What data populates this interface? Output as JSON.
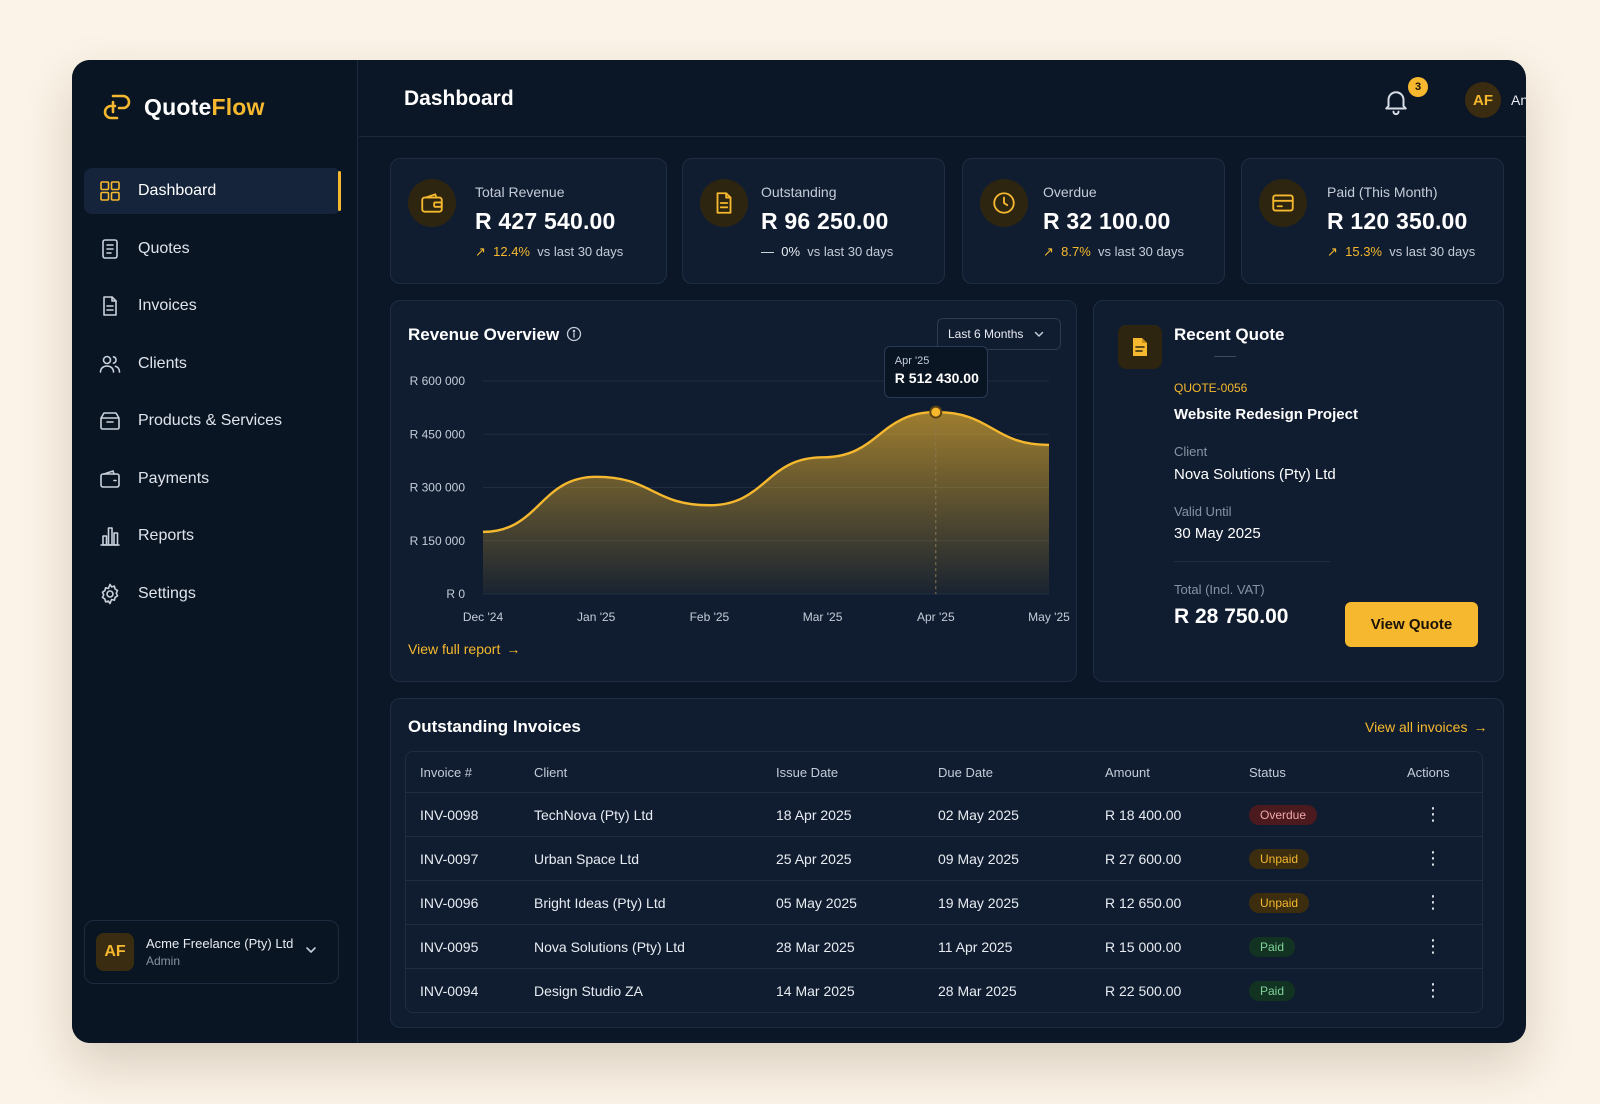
{
  "app": {
    "name_part1": "Quote",
    "name_part2": "Flow"
  },
  "sidebar": {
    "items": [
      {
        "label": "Dashboard",
        "icon": "grid-icon"
      },
      {
        "label": "Quotes",
        "icon": "quote-doc-icon"
      },
      {
        "label": "Invoices",
        "icon": "invoice-doc-icon"
      },
      {
        "label": "Clients",
        "icon": "users-icon"
      },
      {
        "label": "Products & Services",
        "icon": "box-icon"
      },
      {
        "label": "Payments",
        "icon": "wallet-icon"
      },
      {
        "label": "Reports",
        "icon": "bar-chart-icon"
      },
      {
        "label": "Settings",
        "icon": "gear-icon"
      }
    ],
    "account": {
      "initials": "AF",
      "name": "Acme Freelance (Pty) Ltd",
      "role": "Admin"
    }
  },
  "header": {
    "title": "Dashboard",
    "notifications": "3",
    "user_initials": "AF",
    "user_name": "Anele"
  },
  "stats": [
    {
      "label": "Total Revenue",
      "value": "R 427 540.00",
      "delta": "12.4%",
      "suffix": "vs last 30 days",
      "trend": "up"
    },
    {
      "label": "Outstanding",
      "value": "R 96 250.00",
      "delta": "0%",
      "suffix": "vs last 30 days",
      "trend": "flat"
    },
    {
      "label": "Overdue",
      "value": "R 32 100.00",
      "delta": "8.7%",
      "suffix": "vs last 30 days",
      "trend": "up"
    },
    {
      "label": "Paid (This Month)",
      "value": "R 120 350.00",
      "delta": "15.3%",
      "suffix": "vs last 30 days",
      "trend": "up"
    }
  ],
  "revenue": {
    "title": "Revenue Overview",
    "range": "Last 6 Months",
    "link": "View full report",
    "tooltip": {
      "label": "Apr '25",
      "value": "R 512 430.00"
    }
  },
  "chart_data": {
    "type": "area",
    "x": [
      "Dec '24",
      "Jan '25",
      "Feb '25",
      "Mar '25",
      "Apr '25",
      "May '25"
    ],
    "y_ticks": [
      "R 600 000",
      "R 450 000",
      "R 300 000",
      "R 150 000",
      "R 0"
    ],
    "ylim": [
      0,
      600000
    ],
    "series": [
      {
        "values": [
          175000,
          330000,
          250000,
          385000,
          512430,
          420000
        ]
      }
    ],
    "color": "#f5b82e"
  },
  "recent_quote": {
    "title": "Recent Quote",
    "id": "QUOTE-0056",
    "project": "Website Redesign Project",
    "client_label": "Client",
    "client": "Nova Solutions (Pty) Ltd",
    "valid_label": "Valid Until",
    "valid": "30 May 2025",
    "total_label": "Total (Incl. VAT)",
    "total": "R 28 750.00",
    "button": "View Quote"
  },
  "invoices": {
    "title": "Outstanding Invoices",
    "link": "View all invoices",
    "columns": [
      "Invoice #",
      "Client",
      "Issue Date",
      "Due Date",
      "Amount",
      "Status",
      "Actions"
    ],
    "rows": [
      {
        "id": "INV-0098",
        "client": "TechNova (Pty) Ltd",
        "issue": "18 Apr 2025",
        "due": "02 May 2025",
        "amount": "R 18 400.00",
        "status": "Overdue"
      },
      {
        "id": "INV-0097",
        "client": "Urban Space Ltd",
        "issue": "25 Apr 2025",
        "due": "09 May 2025",
        "amount": "R 27 600.00",
        "status": "Unpaid"
      },
      {
        "id": "INV-0096",
        "client": "Bright Ideas (Pty) Ltd",
        "issue": "05 May 2025",
        "due": "19 May 2025",
        "amount": "R 12 650.00",
        "status": "Unpaid"
      },
      {
        "id": "INV-0095",
        "client": "Nova Solutions (Pty) Ltd",
        "issue": "28 Mar 2025",
        "due": "11 Apr 2025",
        "amount": "R 15 000.00",
        "status": "Paid"
      },
      {
        "id": "INV-0094",
        "client": "Design Studio ZA",
        "issue": "14 Mar 2025",
        "due": "28 Mar 2025",
        "amount": "R 22 500.00",
        "status": "Paid"
      }
    ]
  }
}
